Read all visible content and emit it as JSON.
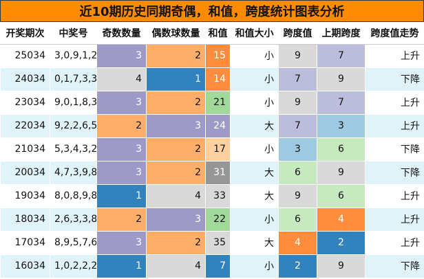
{
  "title": "近10期历史同期奇偶，和值，跨度统计图表分析",
  "headers": [
    "开奖期次",
    "中奖号",
    "奇数数量",
    "偶数球数量",
    "和值",
    "和值大小",
    "跨度值",
    "上期跨度",
    "跨度值走势"
  ],
  "colors": {
    "title_bg": "#FF8C00",
    "purple": "#9E9AC8",
    "peach": "#FDAE6B",
    "gray": "#D9D9D9",
    "blue": "#3182BD",
    "orange": "#FD8D3C",
    "green": "#A1D99B",
    "light_peach": "#FDD0A2",
    "dark_gray": "#969696",
    "lavender": "#BCBDDC",
    "light_blue": "#9ECAE1",
    "light_green": "#C7E9C0"
  },
  "rows": [
    {
      "issue": "25034",
      "numbers": "3,0,9,1,2",
      "odd": "3",
      "even": "2",
      "sum": "15",
      "size": "小",
      "span": "9",
      "prev_span": "7",
      "trend": "上升",
      "bg": {
        "odd": "#9E9AC8",
        "even": "#FDAE6B",
        "sum": "#FD8D3C",
        "span": "#D9D9D9",
        "prev_span": "#BCBDDC"
      },
      "white": {
        "odd": true,
        "even": false,
        "sum": true,
        "span": false,
        "prev_span": false
      }
    },
    {
      "issue": "24034",
      "numbers": "0,1,7,3,3",
      "odd": "4",
      "even": "1",
      "sum": "14",
      "size": "小",
      "span": "7",
      "prev_span": "9",
      "trend": "下降",
      "bg": {
        "odd": "#D9D9D9",
        "even": "#3182BD",
        "sum": "#FD8D3C",
        "span": "#BCBDDC",
        "prev_span": "#D9D9D9"
      },
      "white": {
        "odd": false,
        "even": true,
        "sum": true,
        "span": false,
        "prev_span": false
      }
    },
    {
      "issue": "23034",
      "numbers": "9,0,1,8,3",
      "odd": "3",
      "even": "2",
      "sum": "21",
      "size": "小",
      "span": "9",
      "prev_span": "7",
      "trend": "上升",
      "bg": {
        "odd": "#9E9AC8",
        "even": "#FDAE6B",
        "sum": "#A1D99B",
        "span": "#D9D9D9",
        "prev_span": "#BCBDDC"
      },
      "white": {
        "odd": true,
        "even": false,
        "sum": false,
        "span": false,
        "prev_span": false
      }
    },
    {
      "issue": "22034",
      "numbers": "9,2,2,6,5",
      "odd": "2",
      "even": "3",
      "sum": "24",
      "size": "大",
      "span": "7",
      "prev_span": "3",
      "trend": "上升",
      "bg": {
        "odd": "#FDAE6B",
        "even": "#9E9AC8",
        "sum": "#9E9AC8",
        "span": "#BCBDDC",
        "prev_span": "#9ECAE1"
      },
      "white": {
        "odd": false,
        "even": true,
        "sum": true,
        "span": false,
        "prev_span": false
      }
    },
    {
      "issue": "21034",
      "numbers": "5,3,4,3,2",
      "odd": "3",
      "even": "2",
      "sum": "17",
      "size": "小",
      "span": "3",
      "prev_span": "6",
      "trend": "下降",
      "bg": {
        "odd": "#9E9AC8",
        "even": "#FDAE6B",
        "sum": "#FDD0A2",
        "span": "#9ECAE1",
        "prev_span": "#C7E9C0"
      },
      "white": {
        "odd": true,
        "even": false,
        "sum": false,
        "span": false,
        "prev_span": false
      }
    },
    {
      "issue": "20034",
      "numbers": "4,7,3,9,8",
      "odd": "3",
      "even": "2",
      "sum": "31",
      "size": "大",
      "span": "6",
      "prev_span": "9",
      "trend": "下降",
      "bg": {
        "odd": "#9E9AC8",
        "even": "#FDAE6B",
        "sum": "#969696",
        "span": "#C7E9C0",
        "prev_span": "#D9D9D9"
      },
      "white": {
        "odd": true,
        "even": false,
        "sum": true,
        "span": false,
        "prev_span": false
      }
    },
    {
      "issue": "19034",
      "numbers": "8,0,8,9,8",
      "odd": "1",
      "even": "4",
      "sum": "33",
      "size": "大",
      "span": "9",
      "prev_span": "6",
      "trend": "上升",
      "bg": {
        "odd": "#3182BD",
        "even": "#D9D9D9",
        "sum": "#D9D9D9",
        "span": "#D9D9D9",
        "prev_span": "#C7E9C0"
      },
      "white": {
        "odd": true,
        "even": false,
        "sum": false,
        "span": false,
        "prev_span": false
      }
    },
    {
      "issue": "18034",
      "numbers": "2,6,3,3,8",
      "odd": "2",
      "even": "3",
      "sum": "22",
      "size": "小",
      "span": "6",
      "prev_span": "4",
      "trend": "上升",
      "bg": {
        "odd": "#FDAE6B",
        "even": "#9E9AC8",
        "sum": "#A1D99B",
        "span": "#C7E9C0",
        "prev_span": "#FD8D3C"
      },
      "white": {
        "odd": false,
        "even": true,
        "sum": false,
        "span": false,
        "prev_span": true
      }
    },
    {
      "issue": "17034",
      "numbers": "8,9,5,7,6",
      "odd": "3",
      "even": "2",
      "sum": "35",
      "size": "大",
      "span": "4",
      "prev_span": "2",
      "trend": "上升",
      "bg": {
        "odd": "#9E9AC8",
        "even": "#FDAE6B",
        "sum": "#D9D9D9",
        "span": "#FD8D3C",
        "prev_span": "#3182BD"
      },
      "white": {
        "odd": true,
        "even": false,
        "sum": false,
        "span": true,
        "prev_span": true
      }
    },
    {
      "issue": "16034",
      "numbers": "1,0,2,2,2",
      "odd": "1",
      "even": "4",
      "sum": "7",
      "size": "小",
      "span": "2",
      "prev_span": "9",
      "trend": "下降",
      "bg": {
        "odd": "#3182BD",
        "even": "#D9D9D9",
        "sum": "#3182BD",
        "span": "#3182BD",
        "prev_span": "#D9D9D9"
      },
      "white": {
        "odd": true,
        "even": false,
        "sum": true,
        "span": true,
        "prev_span": false
      }
    }
  ]
}
